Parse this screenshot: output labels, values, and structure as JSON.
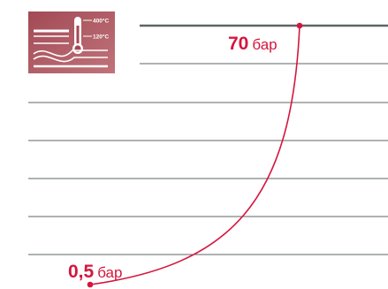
{
  "icon": {
    "name": "temperature-pressure-icon",
    "temp_high": "400°C",
    "temp_low": "120°C",
    "background_color": "#b05b62"
  },
  "pressure_high": {
    "value": "70",
    "unit": "бар"
  },
  "pressure_low": {
    "value": "0,5",
    "unit": "бар"
  },
  "colors": {
    "curve": "#d5163e",
    "lines": "#5f6466",
    "text": "#d5163e"
  }
}
